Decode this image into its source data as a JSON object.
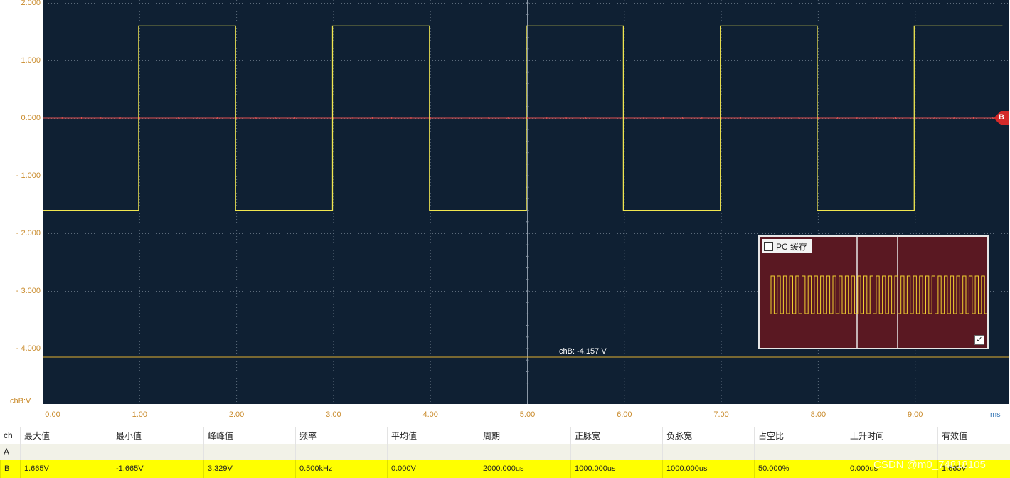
{
  "scope": {
    "y_ticks": [
      "2.000",
      "1.000",
      "0.000",
      "- 1.000",
      "- 2.000",
      "- 3.000",
      "- 4.000"
    ],
    "x_ticks": [
      "0.00",
      "1.00",
      "2.00",
      "3.00",
      "4.00",
      "5.00",
      "6.00",
      "7.00",
      "8.00",
      "9.00"
    ],
    "x_unit": "ms",
    "y_unit": "chB:V",
    "channel_marker": "B",
    "cursor_readout": "chB: -4.157 V",
    "colors": {
      "background": "#0f2033",
      "trace": "#f0e650",
      "zero_line": "#e05050",
      "cursor": "#e0b030"
    }
  },
  "pc_buffer": {
    "label": "PC 缓存",
    "checked": false,
    "confirm_icon": "check-icon",
    "colors": {
      "background": "#5a1822",
      "trace": "#f0d030"
    }
  },
  "measurements": {
    "columns": [
      "ch",
      "最大值",
      "最小值",
      "峰峰值",
      "频率",
      "平均值",
      "周期",
      "正脉宽",
      "负脉宽",
      "占空比",
      "上升时间",
      "有效值"
    ],
    "rows": [
      {
        "ch": "A",
        "values": [
          "",
          "",
          "",
          "",
          "",
          "",
          "",
          "",
          "",
          "",
          ""
        ]
      },
      {
        "ch": "B",
        "values": [
          "1.665V",
          "-1.665V",
          "3.329V",
          "0.500kHz",
          "0.000V",
          "2000.000us",
          "1000.000us",
          "1000.000us",
          "50.000%",
          "0.000us",
          "1.665V"
        ]
      }
    ]
  },
  "watermark": "CSDN @m0_74818105",
  "chart_data": {
    "type": "line",
    "title": "",
    "xlabel": "ms",
    "ylabel": "chB:V",
    "xlim": [
      0,
      9.9
    ],
    "ylim": [
      -4.9,
      2.0
    ],
    "grid": true,
    "series": [
      {
        "x": [
          0,
          0.99,
          0.99,
          1.99,
          1.99,
          2.99,
          2.99,
          3.99,
          3.99,
          4.99,
          4.99,
          5.99,
          5.99,
          6.99,
          6.99,
          7.99,
          7.99,
          8.99,
          8.99,
          9.9
        ],
        "values": [
          -1.6,
          -1.6,
          1.6,
          1.6,
          -1.6,
          -1.6,
          1.6,
          1.6,
          -1.6,
          -1.6,
          1.6,
          1.6,
          -1.6,
          -1.6,
          1.6,
          1.6,
          -1.6,
          -1.6,
          1.6,
          1.6
        ]
      }
    ]
  }
}
